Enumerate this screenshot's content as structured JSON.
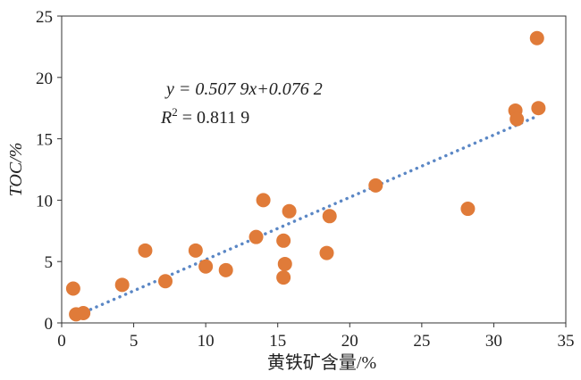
{
  "chart_data": {
    "type": "scatter",
    "xlabel": "黄铁矿含量/%",
    "ylabel": "TOC/%",
    "xlim": [
      0,
      35
    ],
    "ylim": [
      0,
      25
    ],
    "xticks": [
      0,
      5,
      10,
      15,
      20,
      25,
      30,
      35
    ],
    "yticks": [
      0,
      5,
      10,
      15,
      20,
      25
    ],
    "grid": false,
    "legend": "none",
    "series": [
      {
        "color": "#E07B39",
        "points": [
          [
            0.8,
            2.8
          ],
          [
            1.0,
            0.7
          ],
          [
            1.5,
            0.8
          ],
          [
            4.2,
            3.1
          ],
          [
            5.8,
            5.9
          ],
          [
            7.2,
            3.4
          ],
          [
            9.3,
            5.9
          ],
          [
            10.0,
            4.6
          ],
          [
            11.4,
            4.3
          ],
          [
            13.5,
            7.0
          ],
          [
            14.0,
            10.0
          ],
          [
            15.4,
            6.7
          ],
          [
            15.4,
            3.7
          ],
          [
            15.5,
            4.8
          ],
          [
            15.8,
            9.1
          ],
          [
            18.4,
            5.7
          ],
          [
            18.6,
            8.7
          ],
          [
            21.8,
            11.2
          ],
          [
            28.2,
            9.3
          ],
          [
            31.5,
            17.3
          ],
          [
            31.6,
            16.6
          ],
          [
            33.0,
            23.2
          ],
          [
            33.1,
            17.5
          ]
        ]
      }
    ],
    "trendline": {
      "slope": 0.5079,
      "intercept": 0.0762,
      "x_range": [
        0.8,
        33.1
      ],
      "color": "#5B87C5",
      "style": "dotted"
    },
    "annotations": {
      "equation": "y = 0.507 9x+0.076 2",
      "r2_label": "R",
      "r2_sup": "2",
      "r2_value": " = 0.811 9"
    }
  }
}
